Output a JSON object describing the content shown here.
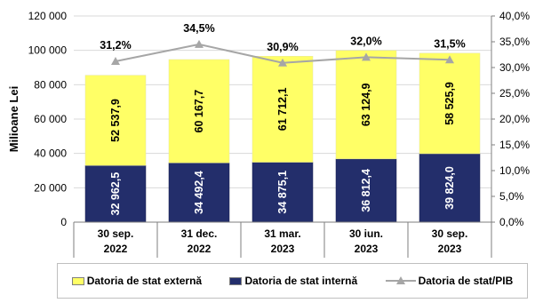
{
  "chart_data": {
    "type": "bar",
    "stacked": true,
    "categories": [
      "30 sep.\n2022",
      "31 dec.\n2022",
      "31 mar.\n2023",
      "30 iun.\n2023",
      "30 sep.\n2023"
    ],
    "series": [
      {
        "name": "Datoria de stat internă",
        "color": "#232e6b",
        "values": [
          32962.5,
          34492.4,
          34875.1,
          36812.4,
          39824.0
        ],
        "labels": [
          "32 962,5",
          "34 492,4",
          "34 875,1",
          "36 812,4",
          "39 824,0"
        ]
      },
      {
        "name": "Datoria de stat externă",
        "color": "#ffff66",
        "values": [
          52537.9,
          60167.7,
          61712.1,
          63124.9,
          58525.9
        ],
        "labels": [
          "52 537,9",
          "60 167,7",
          "61 712,1",
          "63 124,9",
          "58 525,9"
        ]
      }
    ],
    "line_series": {
      "name": "Datoria de stat/PIB",
      "color": "#a6a6a6",
      "values": [
        31.2,
        34.5,
        30.9,
        32.0,
        31.5
      ],
      "labels": [
        "31,2%",
        "34,5%",
        "30,9%",
        "32,0%",
        "31,5%"
      ]
    },
    "ylabel": "Milioane Lei",
    "ylim": [
      0,
      120000
    ],
    "yticks": [
      0,
      20000,
      40000,
      60000,
      80000,
      100000,
      120000
    ],
    "ytick_labels": [
      "0",
      "20 000",
      "40 000",
      "60 000",
      "80 000",
      "100 000",
      "120 000"
    ],
    "y2lim": [
      0,
      40
    ],
    "y2ticks": [
      0,
      5,
      10,
      15,
      20,
      25,
      30,
      35,
      40
    ],
    "y2tick_labels": [
      "0,0%",
      "5,0%",
      "10,0%",
      "15,0%",
      "20,0%",
      "25,0%",
      "30,0%",
      "35,0%",
      "40,0%"
    ],
    "grid": true,
    "legend_position": "bottom"
  },
  "legend": {
    "items": [
      "Datoria de stat externă",
      "Datoria de stat internă",
      "Datoria de stat/PIB"
    ]
  }
}
